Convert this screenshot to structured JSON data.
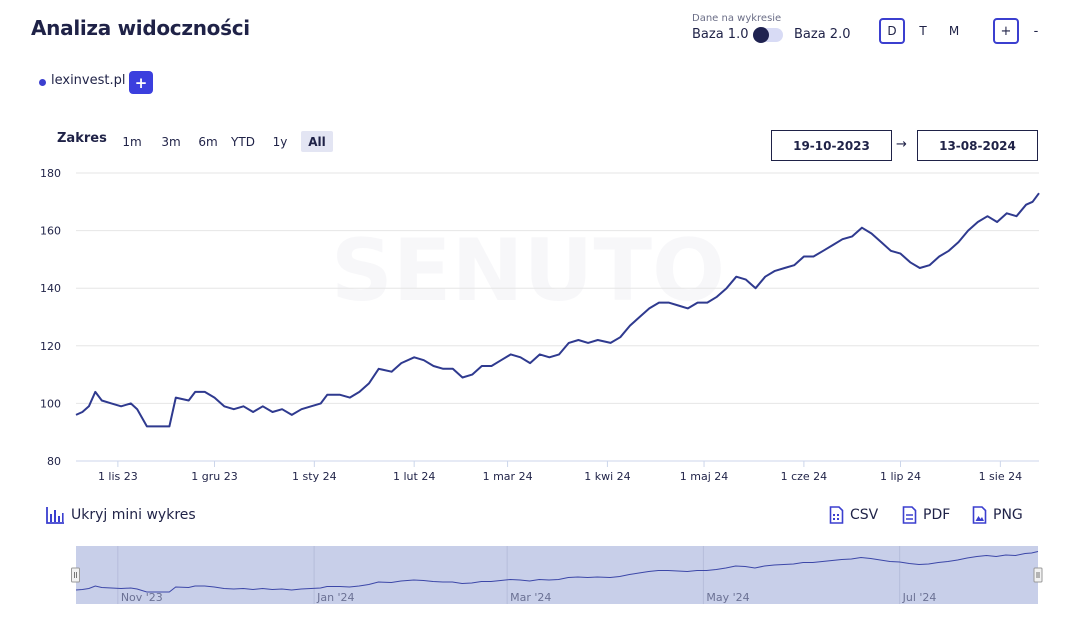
{
  "header": {
    "title": "Analiza widoczności",
    "data_source_label": "Dane na wykresie",
    "base_left": "Baza 1.0",
    "base_right": "Baza 2.0",
    "periods": [
      "D",
      "T",
      "M"
    ],
    "active_period": "D",
    "zoom_in": "+",
    "zoom_out": "-"
  },
  "domain": {
    "name": "lexinvest.pl",
    "color": "#3b3fcf",
    "add_label": "+"
  },
  "range": {
    "label": "Zakres",
    "options": [
      "1m",
      "3m",
      "6m",
      "YTD",
      "1y",
      "All"
    ],
    "active": "All",
    "date_from": "19-10-2023",
    "date_to": "13-08-2024",
    "arrow": "→"
  },
  "chart_data": {
    "type": "line",
    "watermark": "SENUTO",
    "ylim": [
      80,
      180
    ],
    "yticks": [
      80,
      100,
      120,
      140,
      160,
      180
    ],
    "x_start": "2023-10-19",
    "x_end": "2024-08-13",
    "xticks": [
      {
        "date": "2023-11-01",
        "label": "1 lis 23"
      },
      {
        "date": "2023-12-01",
        "label": "1 gru 23"
      },
      {
        "date": "2024-01-01",
        "label": "1 sty 24"
      },
      {
        "date": "2024-02-01",
        "label": "1 lut 24"
      },
      {
        "date": "2024-03-01",
        "label": "1 mar 24"
      },
      {
        "date": "2024-04-01",
        "label": "1 kwi 24"
      },
      {
        "date": "2024-05-01",
        "label": "1 maj 24"
      },
      {
        "date": "2024-06-01",
        "label": "1 cze 24"
      },
      {
        "date": "2024-07-01",
        "label": "1 lip 24"
      },
      {
        "date": "2024-08-01",
        "label": "1 sie 24"
      }
    ],
    "series": [
      {
        "color": "#2f3a8f",
        "points": [
          [
            "2023-10-19",
            96
          ],
          [
            "2023-10-21",
            97
          ],
          [
            "2023-10-23",
            99
          ],
          [
            "2023-10-25",
            104
          ],
          [
            "2023-10-27",
            101
          ],
          [
            "2023-10-30",
            100
          ],
          [
            "2023-11-02",
            99
          ],
          [
            "2023-11-05",
            100
          ],
          [
            "2023-11-07",
            98
          ],
          [
            "2023-11-10",
            92
          ],
          [
            "2023-11-14",
            92
          ],
          [
            "2023-11-17",
            92
          ],
          [
            "2023-11-19",
            102
          ],
          [
            "2023-11-23",
            101
          ],
          [
            "2023-11-25",
            104
          ],
          [
            "2023-11-28",
            104
          ],
          [
            "2023-12-01",
            102
          ],
          [
            "2023-12-04",
            99
          ],
          [
            "2023-12-07",
            98
          ],
          [
            "2023-12-10",
            99
          ],
          [
            "2023-12-13",
            97
          ],
          [
            "2023-12-16",
            99
          ],
          [
            "2023-12-19",
            97
          ],
          [
            "2023-12-22",
            98
          ],
          [
            "2023-12-25",
            96
          ],
          [
            "2023-12-28",
            98
          ],
          [
            "2023-12-31",
            99
          ],
          [
            "2024-01-03",
            100
          ],
          [
            "2024-01-05",
            103
          ],
          [
            "2024-01-09",
            103
          ],
          [
            "2024-01-12",
            102
          ],
          [
            "2024-01-15",
            104
          ],
          [
            "2024-01-18",
            107
          ],
          [
            "2024-01-21",
            112
          ],
          [
            "2024-01-25",
            111
          ],
          [
            "2024-01-28",
            114
          ],
          [
            "2024-02-01",
            116
          ],
          [
            "2024-02-04",
            115
          ],
          [
            "2024-02-07",
            113
          ],
          [
            "2024-02-10",
            112
          ],
          [
            "2024-02-13",
            112
          ],
          [
            "2024-02-16",
            109
          ],
          [
            "2024-02-19",
            110
          ],
          [
            "2024-02-22",
            113
          ],
          [
            "2024-02-25",
            113
          ],
          [
            "2024-02-28",
            115
          ],
          [
            "2024-03-02",
            117
          ],
          [
            "2024-03-05",
            116
          ],
          [
            "2024-03-08",
            114
          ],
          [
            "2024-03-11",
            117
          ],
          [
            "2024-03-14",
            116
          ],
          [
            "2024-03-17",
            117
          ],
          [
            "2024-03-20",
            121
          ],
          [
            "2024-03-23",
            122
          ],
          [
            "2024-03-26",
            121
          ],
          [
            "2024-03-29",
            122
          ],
          [
            "2024-04-02",
            121
          ],
          [
            "2024-04-05",
            123
          ],
          [
            "2024-04-08",
            127
          ],
          [
            "2024-04-11",
            130
          ],
          [
            "2024-04-14",
            133
          ],
          [
            "2024-04-17",
            135
          ],
          [
            "2024-04-20",
            135
          ],
          [
            "2024-04-23",
            134
          ],
          [
            "2024-04-26",
            133
          ],
          [
            "2024-04-29",
            135
          ],
          [
            "2024-05-02",
            135
          ],
          [
            "2024-05-05",
            137
          ],
          [
            "2024-05-08",
            140
          ],
          [
            "2024-05-11",
            144
          ],
          [
            "2024-05-14",
            143
          ],
          [
            "2024-05-17",
            140
          ],
          [
            "2024-05-20",
            144
          ],
          [
            "2024-05-23",
            146
          ],
          [
            "2024-05-26",
            147
          ],
          [
            "2024-05-29",
            148
          ],
          [
            "2024-06-01",
            151
          ],
          [
            "2024-06-04",
            151
          ],
          [
            "2024-06-07",
            153
          ],
          [
            "2024-06-10",
            155
          ],
          [
            "2024-06-13",
            157
          ],
          [
            "2024-06-16",
            158
          ],
          [
            "2024-06-19",
            161
          ],
          [
            "2024-06-22",
            159
          ],
          [
            "2024-06-25",
            156
          ],
          [
            "2024-06-28",
            153
          ],
          [
            "2024-07-01",
            152
          ],
          [
            "2024-07-04",
            149
          ],
          [
            "2024-07-07",
            147
          ],
          [
            "2024-07-10",
            148
          ],
          [
            "2024-07-13",
            151
          ],
          [
            "2024-07-16",
            153
          ],
          [
            "2024-07-19",
            156
          ],
          [
            "2024-07-22",
            160
          ],
          [
            "2024-07-25",
            163
          ],
          [
            "2024-07-28",
            165
          ],
          [
            "2024-07-31",
            163
          ],
          [
            "2024-08-03",
            166
          ],
          [
            "2024-08-06",
            165
          ],
          [
            "2024-08-09",
            169
          ],
          [
            "2024-08-11",
            170
          ],
          [
            "2024-08-13",
            173
          ]
        ]
      }
    ]
  },
  "mini_chart": {
    "toggle_label": "Ukryj mini wykres",
    "ticks": [
      {
        "date": "2023-11-01",
        "label": "Nov '23"
      },
      {
        "date": "2024-01-01",
        "label": "Jan '24"
      },
      {
        "date": "2024-03-01",
        "label": "Mar '24"
      },
      {
        "date": "2024-05-01",
        "label": "May '24"
      },
      {
        "date": "2024-07-01",
        "label": "Jul '24"
      }
    ],
    "selection_color": "#c8cfe9"
  },
  "export": {
    "csv": "CSV",
    "pdf": "PDF",
    "png": "PNG"
  }
}
